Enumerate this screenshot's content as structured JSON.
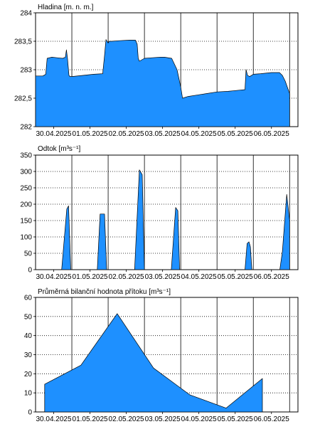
{
  "colors": {
    "fill": "#1E90FF",
    "outline": "#000000",
    "grid": "#000000",
    "background": "#ffffff"
  },
  "chart_data": [
    {
      "type": "area",
      "title": "Hladina [m. n. m.]",
      "xlabel": "",
      "ylabel": "",
      "xlim": [
        0,
        7.23
      ],
      "ylim": [
        282,
        284
      ],
      "yticks": [
        282,
        282.5,
        283,
        283.5,
        284
      ],
      "ytick_labels": [
        "282",
        "282,5",
        "283",
        "283,5",
        "284"
      ],
      "x_tick_labels": [
        "30.04.2025",
        "01.05.2025",
        "02.05.2025",
        "03.05.2025",
        "04.05.2025",
        "05.05.2025",
        "06.05.2025"
      ],
      "grid": {
        "x": "solid",
        "y": "dotted"
      },
      "series": [
        {
          "x": [
            0,
            0.2,
            0.28,
            0.32,
            0.45,
            0.6,
            0.75,
            0.82,
            0.85,
            0.88,
            0.92,
            0.95,
            1.0,
            1.3,
            1.6,
            1.85,
            1.9,
            1.94,
            1.97,
            2.0,
            2.03,
            2.1,
            2.3,
            2.6,
            2.75,
            2.8,
            2.83,
            2.86,
            3.0,
            3.2,
            3.45,
            3.55,
            3.75,
            3.9,
            4.0,
            4.05,
            4.2,
            4.5,
            4.7,
            5.0,
            5.3,
            5.6,
            5.77,
            5.8,
            5.84,
            5.9,
            6.0,
            6.2,
            6.5,
            6.72,
            6.8,
            6.88,
            7.0
          ],
          "values": [
            282.89,
            282.89,
            282.92,
            283.2,
            283.22,
            283.21,
            283.2,
            283.22,
            283.35,
            283.2,
            282.9,
            282.88,
            282.88,
            282.9,
            282.92,
            282.93,
            283.25,
            283.53,
            283.5,
            283.47,
            283.5,
            283.5,
            283.51,
            283.52,
            283.52,
            283.45,
            283.2,
            283.15,
            283.2,
            283.21,
            283.22,
            283.22,
            283.2,
            283.0,
            282.7,
            282.5,
            282.53,
            282.56,
            282.58,
            282.61,
            282.62,
            282.64,
            282.65,
            283.0,
            282.9,
            282.88,
            282.92,
            282.93,
            282.95,
            282.95,
            282.9,
            282.8,
            282.58
          ]
        }
      ]
    },
    {
      "type": "area",
      "title": "Odtok [m³s⁻¹]",
      "xlabel": "",
      "ylabel": "",
      "xlim": [
        0,
        7.23
      ],
      "ylim": [
        0,
        350
      ],
      "yticks": [
        0,
        50,
        100,
        150,
        200,
        250,
        300,
        350
      ],
      "ytick_labels": [
        "0",
        "50",
        "100",
        "150",
        "200",
        "250",
        "300",
        "350"
      ],
      "x_tick_labels": [
        "30.04.2025",
        "01.05.2025",
        "02.05.2025",
        "03.05.2025",
        "04.05.2025",
        "05.05.2025",
        "06.05.2025"
      ],
      "grid": {
        "x": "solid",
        "y": "dotted"
      },
      "series": [
        {
          "x": [
            0,
            0.72,
            0.86,
            0.91,
            0.97,
            1.0,
            1.7,
            1.78,
            1.82,
            1.9,
            1.96,
            2.0,
            2.73,
            2.86,
            2.94,
            3.0,
            3.05,
            3.74,
            3.86,
            3.92,
            3.97,
            4.0,
            5.77,
            5.83,
            5.88,
            5.92,
            5.96,
            6.0,
            6.73,
            6.8,
            6.92,
            7.0
          ],
          "values": [
            0,
            0,
            185,
            195,
            0,
            0,
            0,
            170,
            170,
            170,
            0,
            0,
            0,
            305,
            290,
            0,
            0,
            0,
            190,
            180,
            0,
            0,
            0,
            80,
            85,
            70,
            0,
            0,
            0,
            55,
            230,
            150
          ]
        }
      ]
    },
    {
      "type": "area",
      "title": "Průměrná bilanční hodnota přítoku   [m³s⁻¹]",
      "xlabel": "",
      "ylabel": "",
      "xlim": [
        0,
        7.23
      ],
      "ylim": [
        0,
        60
      ],
      "yticks": [
        0,
        10,
        20,
        30,
        40,
        50,
        60
      ],
      "ytick_labels": [
        "0",
        "10",
        "20",
        "30",
        "40",
        "50",
        "60"
      ],
      "x_tick_labels": [
        "30.04.2025",
        "01.05.2025",
        "02.05.2025",
        "03.05.2025",
        "04.05.2025",
        "05.05.2025",
        "06.05.2025"
      ],
      "grid": {
        "x": "solid",
        "y": "dotted"
      },
      "series": [
        {
          "x": [
            0.25,
            1.25,
            2.25,
            3.25,
            4.25,
            5.25,
            6.25
          ],
          "values": [
            14.5,
            24.5,
            51.5,
            23,
            9,
            2,
            17.5
          ]
        }
      ]
    }
  ]
}
